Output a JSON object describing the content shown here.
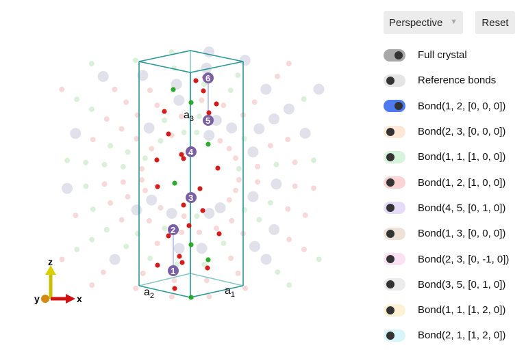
{
  "controls": {
    "projection": "Perspective",
    "reset_label": "Reset"
  },
  "toggles": [
    {
      "label": "Full crystal",
      "on": true,
      "color": "#a8a8a8"
    },
    {
      "label": "Reference bonds",
      "on": false,
      "color": "#e5e5e5"
    },
    {
      "label": "Bond(1, 2, [0, 0, 0])",
      "on": true,
      "color": "#4f79f0"
    },
    {
      "label": "Bond(2, 3, [0, 0, 0])",
      "on": false,
      "color": "#fde8d6"
    },
    {
      "label": "Bond(1, 1, [1, 0, 0])",
      "on": false,
      "color": "#d8f3dc"
    },
    {
      "label": "Bond(1, 2, [1, 0, 0])",
      "on": false,
      "color": "#fad4d4"
    },
    {
      "label": "Bond(4, 5, [0, 1, 0])",
      "on": false,
      "color": "#e6dcf7"
    },
    {
      "label": "Bond(1, 3, [0, 0, 0])",
      "on": false,
      "color": "#eee2d6"
    },
    {
      "label": "Bond(2, 3, [0, -1, 0])",
      "on": false,
      "color": "#fbe1f4"
    },
    {
      "label": "Bond(3, 5, [0, 1, 0])",
      "on": false,
      "color": "#ececec"
    },
    {
      "label": "Bond(1, 1, [1, 2, 0])",
      "on": false,
      "color": "#fdf3d4"
    },
    {
      "label": "Bond(2, 1, [1, 2, 0])",
      "on": false,
      "color": "#d8f5fa"
    }
  ],
  "lattice": {
    "a1": "a",
    "a1_sub": "1",
    "a2": "a",
    "a2_sub": "2",
    "a3": "a",
    "a3_sub": "3"
  },
  "atoms": [
    "1",
    "2",
    "3",
    "4",
    "5",
    "6"
  ],
  "axes": {
    "x": "x",
    "y": "y",
    "z": "z"
  },
  "colors": {
    "cell": "#2a9a96",
    "atom": "#7b5fa5",
    "red_atom": "#d11010",
    "green_atom": "#22a622",
    "bond": "#8fa0e8"
  }
}
